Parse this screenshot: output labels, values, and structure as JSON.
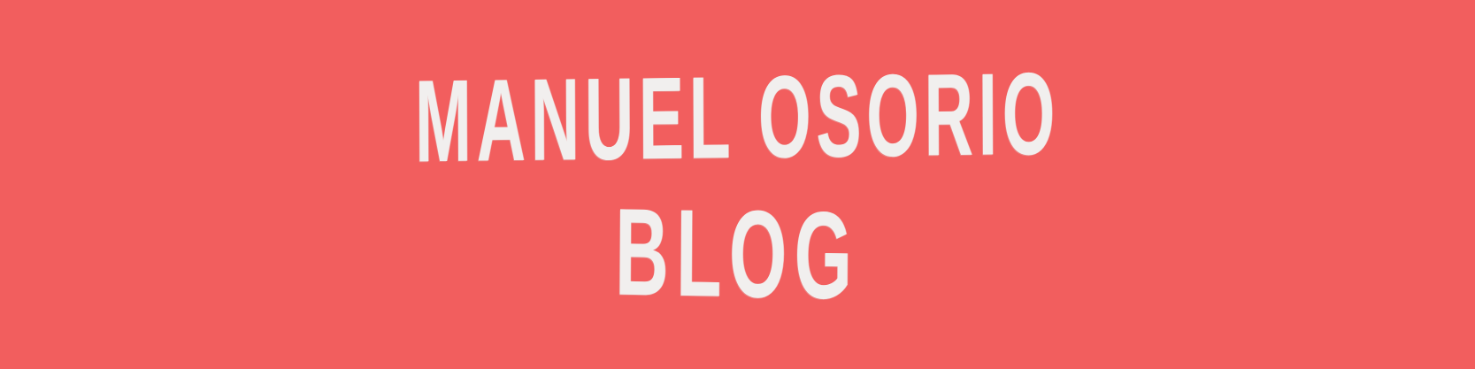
{
  "banner": {
    "background_color": "#f25e5e",
    "text_color": "#f1efee",
    "title_line_1": "MANUEL OSORIO",
    "title_line_2": "BLOG"
  }
}
